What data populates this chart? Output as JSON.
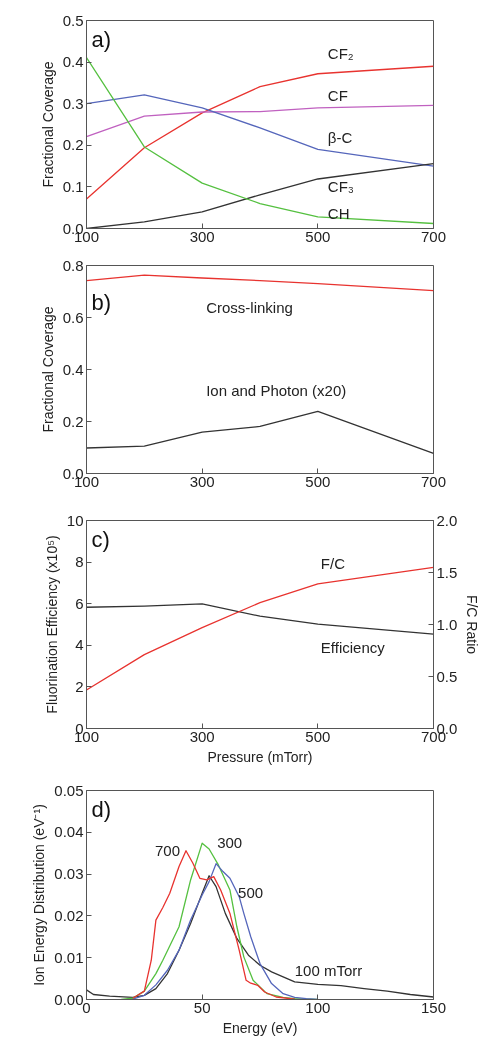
{
  "chart_data": [
    {
      "type": "line",
      "ylabel": "Fractional Coverage",
      "xlim": [
        100,
        700
      ],
      "xticks": [
        100,
        300,
        500,
        700
      ],
      "ylim": [
        0,
        0.5
      ],
      "yticks": [
        {
          "value": 0,
          "label": "0.0"
        },
        0.1,
        0.2,
        0.3,
        0.4,
        0.5
      ],
      "grid": false,
      "legend": false,
      "marker": "none",
      "line_style": "solid",
      "x": [
        100,
        200,
        300,
        400,
        500,
        700
      ],
      "series": [
        {
          "name": "CF₂",
          "color": "#e8332f",
          "values": [
            0.071,
            0.194,
            0.278,
            0.341,
            0.372,
            0.39
          ]
        },
        {
          "name": "CF",
          "color": "#c061c0",
          "values": [
            0.221,
            0.27,
            0.28,
            0.281,
            0.29,
            0.296
          ]
        },
        {
          "name": "β-C",
          "color": "#5566bb",
          "values": [
            0.3,
            0.321,
            0.29,
            0.242,
            0.19,
            0.15
          ]
        },
        {
          "name": "CF₃",
          "color": "#333333",
          "values": [
            0,
            0.016,
            0.04,
            0.081,
            0.119,
            0.156
          ]
        },
        {
          "name": "CH",
          "color": "#55c040",
          "values": [
            0.411,
            0.196,
            0.109,
            0.06,
            0.028,
            0.012
          ]
        }
      ],
      "annotations": [
        "a)"
      ]
    },
    {
      "type": "line",
      "ylabel": "Fractional Coverage",
      "xlim": [
        100,
        700
      ],
      "xticks": [
        100,
        300,
        500,
        700
      ],
      "ylim": [
        0,
        0.8
      ],
      "yticks": [
        {
          "value": 0,
          "label": "0.0"
        },
        0.2,
        0.4,
        0.6,
        0.8
      ],
      "grid": false,
      "legend": false,
      "marker": "none",
      "line_style": "solid",
      "x": [
        100,
        200,
        300,
        400,
        500,
        700
      ],
      "series": [
        {
          "name": "Cross-linking",
          "color": "#e8332f",
          "values": [
            0.742,
            0.763,
            0.752,
            0.742,
            0.73,
            0.703
          ]
        },
        {
          "name": "Ion and Photon (x20)",
          "color": "#333333",
          "values": [
            0.098,
            0.105,
            0.159,
            0.181,
            0.239,
            0.077
          ]
        }
      ],
      "annotations": [
        "b)"
      ]
    },
    {
      "type": "line",
      "xlabel": "Pressure (mTorr)",
      "ylabel": "Fluorination Efficiency (x10⁵)",
      "y2label": "F/C Ratio",
      "xlim": [
        100,
        700
      ],
      "xticks": [
        100,
        300,
        500,
        700
      ],
      "ylim": [
        0,
        10
      ],
      "yticks": [
        0,
        2,
        4,
        6,
        8,
        10
      ],
      "y2lim": [
        0,
        2
      ],
      "y2ticks": [
        {
          "value": 0,
          "label": "0.0"
        },
        0.5,
        {
          "value": 1,
          "label": "1.0"
        },
        1.5,
        {
          "value": 2,
          "label": "2.0"
        }
      ],
      "grid": false,
      "legend": false,
      "marker": "none",
      "line_style": "solid",
      "x": [
        100,
        200,
        300,
        400,
        500,
        700
      ],
      "series": [
        {
          "name": "Efficiency",
          "color": "#333333",
          "values": [
            5.83,
            5.88,
            5.99,
            5.4,
            5.02,
            4.54
          ]
        },
        {
          "name": "F/C",
          "color": "#e8332f",
          "axis": "y2",
          "values": [
            0.37,
            0.71,
            0.97,
            1.21,
            1.39,
            1.55
          ]
        }
      ],
      "annotations": [
        "c)"
      ]
    },
    {
      "type": "line",
      "xlabel": "Energy (eV)",
      "ylabel": "Ion Energy Distribution (eV⁻¹)",
      "xlim": [
        0,
        150
      ],
      "xticks": [
        0,
        50,
        100,
        150
      ],
      "ylim": [
        0,
        0.05
      ],
      "yticks": [
        {
          "value": 0,
          "label": "0.00"
        },
        {
          "value": 0.01,
          "label": "0.01"
        },
        {
          "value": 0.02,
          "label": "0.02"
        },
        {
          "value": 0.03,
          "label": "0.03"
        },
        {
          "value": 0.04,
          "label": "0.04"
        },
        {
          "value": 0.05,
          "label": "0.05"
        }
      ],
      "grid": false,
      "legend": false,
      "marker": "none",
      "line_style": "solid",
      "series": [
        {
          "name": "100 mTorr",
          "color": "#333333",
          "x": [
            0,
            3,
            10,
            20,
            25,
            30,
            35,
            40,
            45,
            50,
            53,
            56,
            60,
            65,
            70,
            75,
            80,
            90,
            100,
            110,
            120,
            130,
            140,
            150
          ],
          "values": [
            0.0023,
            0.0012,
            0.0008,
            0.0005,
            0.001,
            0.0026,
            0.0062,
            0.0118,
            0.0182,
            0.0254,
            0.0296,
            0.027,
            0.0206,
            0.0146,
            0.0106,
            0.0082,
            0.0066,
            0.0042,
            0.0036,
            0.0033,
            0.0026,
            0.002,
            0.0012,
            0.0006
          ]
        },
        {
          "name": "300",
          "color": "#55c040",
          "x": [
            15,
            20,
            25,
            30,
            33,
            40,
            45,
            50,
            53,
            57,
            62,
            65,
            68,
            72,
            78,
            85,
            90,
            100
          ],
          "values": [
            0,
            0.0003,
            0.002,
            0.0062,
            0.0094,
            0.0174,
            0.0286,
            0.0374,
            0.036,
            0.0322,
            0.0262,
            0.0174,
            0.0102,
            0.0046,
            0.0014,
            0.0005,
            0.0002,
            0
          ]
        },
        {
          "name": "500",
          "color": "#5566bb",
          "x": [
            20,
            25,
            30,
            35,
            40,
            45,
            50,
            53,
            56,
            59,
            62,
            66,
            68,
            71,
            75,
            80,
            85,
            90,
            95,
            100
          ],
          "values": [
            0.0001,
            0.001,
            0.0035,
            0.007,
            0.0118,
            0.019,
            0.025,
            0.0282,
            0.0325,
            0.0306,
            0.029,
            0.0246,
            0.0206,
            0.015,
            0.0086,
            0.0038,
            0.0014,
            0.0005,
            0.0002,
            0
          ]
        },
        {
          "name": "700",
          "color": "#e8332f",
          "x": [
            20,
            25,
            28,
            30,
            33,
            36,
            40,
            43,
            46,
            49,
            52,
            55,
            58,
            62,
            66,
            69,
            71,
            74,
            77,
            82,
            90
          ],
          "values": [
            0.0003,
            0.002,
            0.0094,
            0.019,
            0.022,
            0.0254,
            0.0318,
            0.0356,
            0.0326,
            0.029,
            0.0286,
            0.0294,
            0.0262,
            0.0206,
            0.0118,
            0.0046,
            0.0039,
            0.0034,
            0.0018,
            0.0006,
            0.0001
          ]
        }
      ],
      "annotations": [
        "d)"
      ]
    }
  ]
}
